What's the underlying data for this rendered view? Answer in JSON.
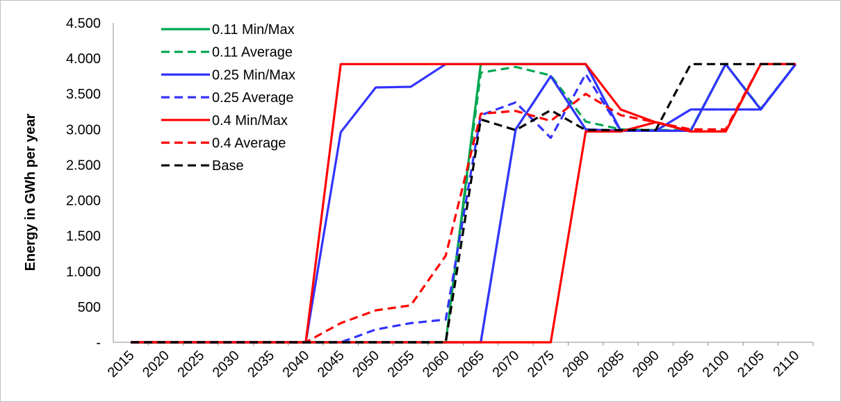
{
  "chart_data": {
    "type": "line",
    "ylabel": "Energy in GWh per year",
    "xlabel": "",
    "ylim": [
      0,
      4500
    ],
    "y_ticks": [
      0,
      500,
      1000,
      1500,
      2000,
      2500,
      3000,
      3500,
      4000,
      4500
    ],
    "y_tick_labels": [
      "-",
      "500",
      "1.000",
      "1.500",
      "2.000",
      "2.500",
      "3.000",
      "3.500",
      "4.000",
      "4.500"
    ],
    "x": [
      "2015",
      "2020",
      "2025",
      "2030",
      "2035",
      "2040",
      "2045",
      "2050",
      "2055",
      "2060",
      "2065",
      "2070",
      "2075",
      "2080",
      "2085",
      "2090",
      "2095",
      "2100",
      "2105",
      "2110"
    ],
    "grid": false,
    "legend_position": "top-left",
    "series": [
      {
        "name": "0.11 Min/Max",
        "color": "#00a651",
        "dash": "solid",
        "lines": [
          [
            0,
            0,
            0,
            0,
            0,
            0,
            0,
            0,
            0,
            0,
            3920,
            3920,
            3920,
            3920,
            2980,
            2980,
            2980,
            3920,
            3280,
            3920
          ],
          [
            0,
            0,
            0,
            0,
            0,
            0,
            0,
            0,
            0,
            0,
            0,
            3000,
            3750,
            3000,
            2980,
            2980,
            2980,
            3920,
            3280,
            3920
          ]
        ]
      },
      {
        "name": "0.11 Average",
        "color": "#00a651",
        "dash": "dashed",
        "values": [
          0,
          0,
          0,
          0,
          0,
          0,
          0,
          0,
          0,
          0,
          3800,
          3880,
          3760,
          3110,
          3000,
          2990,
          2990,
          3920,
          3290,
          3920
        ]
      },
      {
        "name": "0.25 Min/Max",
        "color": "#3333ff",
        "dash": "solid",
        "lines": [
          [
            0,
            0,
            0,
            0,
            0,
            0,
            2960,
            3590,
            3600,
            3920,
            3920,
            3920,
            3920,
            3920,
            2980,
            2980,
            3280,
            3280,
            3280,
            3920
          ],
          [
            0,
            0,
            0,
            0,
            0,
            0,
            0,
            0,
            0,
            0,
            0,
            3000,
            3750,
            3000,
            2980,
            2980,
            2980,
            3920,
            3280,
            3920
          ]
        ]
      },
      {
        "name": "0.25 Average",
        "color": "#3333ff",
        "dash": "dashed",
        "values": [
          0,
          0,
          0,
          0,
          0,
          0,
          0,
          180,
          270,
          320,
          3200,
          3380,
          2880,
          3780,
          2980,
          2980,
          3280,
          3280,
          3280,
          3920
        ]
      },
      {
        "name": "0.4 Min/Max",
        "color": "#ff0000",
        "dash": "solid",
        "lines": [
          [
            0,
            0,
            0,
            0,
            0,
            0,
            3920,
            3920,
            3920,
            3920,
            3920,
            3920,
            3920,
            3920,
            3280,
            3100,
            2970,
            2970,
            3920,
            3920
          ],
          [
            0,
            0,
            0,
            0,
            0,
            0,
            0,
            0,
            0,
            0,
            0,
            0,
            0,
            2970,
            2970,
            3100,
            2970,
            2970,
            3920,
            3920
          ]
        ]
      },
      {
        "name": "0.4 Average",
        "color": "#ff0000",
        "dash": "dashed",
        "values": [
          0,
          0,
          0,
          0,
          0,
          0,
          270,
          450,
          520,
          1220,
          3220,
          3260,
          3120,
          3500,
          3200,
          3100,
          3000,
          3000,
          3920,
          3920
        ]
      },
      {
        "name": "Base",
        "color": "#000000",
        "dash": "dashed",
        "values": [
          0,
          0,
          0,
          0,
          0,
          0,
          0,
          0,
          0,
          0,
          3140,
          2990,
          3270,
          2990,
          2990,
          2990,
          3920,
          3920,
          3920,
          3920
        ]
      }
    ]
  }
}
